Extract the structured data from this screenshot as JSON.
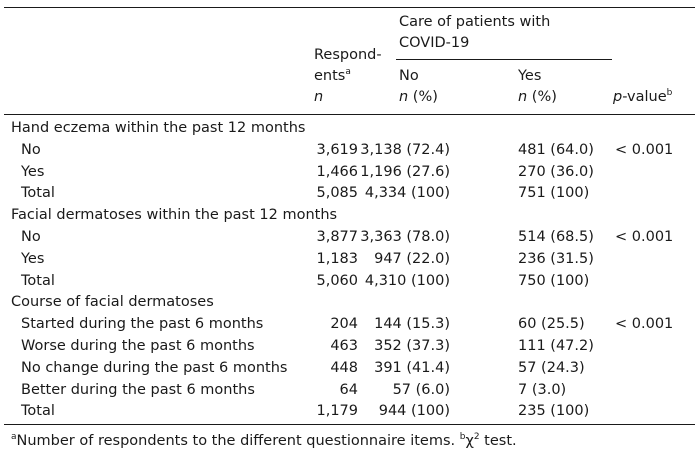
{
  "header": {
    "covid_group": "Care of patients with COVID-19",
    "respondents_line1": "Respond-",
    "respondents_line2": "ents",
    "respondents_sup": "a",
    "respondents_unit": "n",
    "no_label": "No",
    "no_unit": "n",
    "no_pct": " (%)",
    "yes_label": "Yes",
    "yes_unit": "n",
    "yes_pct": " (%)",
    "p_value_p": "p",
    "p_value_rest": "-value",
    "p_value_sup": "b"
  },
  "rows": [
    {
      "label": "Hand eczema within the past 12 months",
      "section": true
    },
    {
      "label": "No",
      "respondents": "3,619",
      "no": "3,138 (72.4)",
      "yes": "481 (64.0)",
      "p": "< 0.001"
    },
    {
      "label": "Yes",
      "respondents": "1,466",
      "no": "1,196 (27.6)",
      "yes": "270 (36.0)",
      "p": ""
    },
    {
      "label": "Total",
      "respondents": "5,085",
      "no": "4,334 (100)",
      "yes": "751 (100)",
      "p": ""
    },
    {
      "label": "Facial dermatoses within the past 12 months",
      "section": true
    },
    {
      "label": "No",
      "respondents": "3,877",
      "no": "3,363 (78.0)",
      "yes": "514 (68.5)",
      "p": "< 0.001"
    },
    {
      "label": "Yes",
      "respondents": "1,183",
      "no": "947 (22.0)",
      "yes": "236 (31.5)",
      "p": ""
    },
    {
      "label": "Total",
      "respondents": "5,060",
      "no": "4,310 (100)",
      "yes": "750 (100)",
      "p": ""
    },
    {
      "label": "Course of facial dermatoses",
      "section": true
    },
    {
      "label": "Started during the past 6 months",
      "respondents": "204",
      "no": "144 (15.3)",
      "yes": "60 (25.5)",
      "p": "< 0.001"
    },
    {
      "label": "Worse during the past 6 months",
      "respondents": "463",
      "no": "352 (37.3)",
      "yes": "111 (47.2)",
      "p": ""
    },
    {
      "label": "No change during the past 6 months",
      "respondents": "448",
      "no": "391 (41.4)",
      "yes": "57 (24.3)",
      "p": ""
    },
    {
      "label": "Better during the past 6 months",
      "respondents": "64",
      "no": "57 (6.0)",
      "yes": "7 (3.0)",
      "p": ""
    },
    {
      "label": "Total",
      "respondents": "1,179",
      "no": "944 (100)",
      "yes": "235 (100)",
      "p": ""
    }
  ],
  "footnote": {
    "a_sup": "a",
    "a_text": "Number of respondents to the different questionnaire items. ",
    "b_sup": "b",
    "b_chi": "χ",
    "b_chi_sup": "2",
    "b_text": " test."
  }
}
